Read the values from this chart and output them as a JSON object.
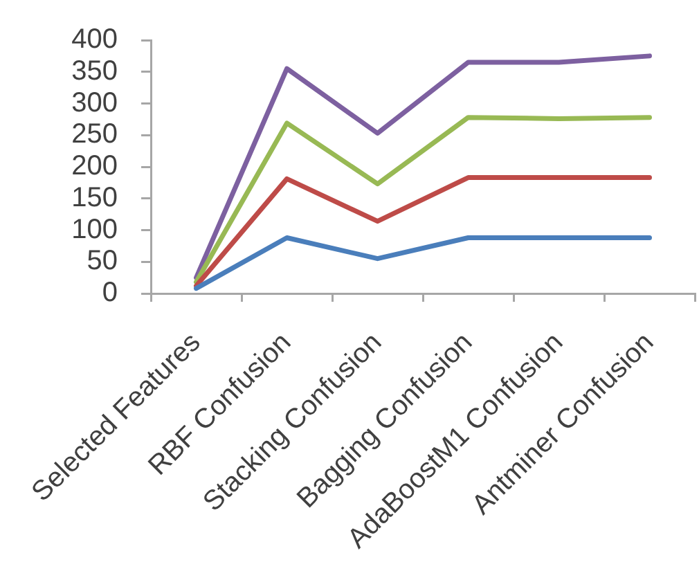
{
  "chart_data": {
    "type": "line",
    "categories": [
      "Selected Features",
      "RBF Confusion",
      "Stacking Confusion",
      "Bagging Confusion",
      "AdaBoostM1 Confusion",
      "Antminer Confusion"
    ],
    "series": [
      {
        "color": "#4a7ebb",
        "values": [
          8,
          88,
          55,
          88,
          88,
          88
        ]
      },
      {
        "color": "#be4b48",
        "values": [
          12,
          181,
          114,
          183,
          183,
          183
        ]
      },
      {
        "color": "#98b954",
        "values": [
          18,
          269,
          173,
          278,
          276,
          278
        ]
      },
      {
        "color": "#7d60a0",
        "values": [
          25,
          355,
          253,
          365,
          365,
          375
        ]
      }
    ],
    "ylim": [
      0,
      400
    ],
    "yticks": [
      0,
      50,
      100,
      150,
      200,
      250,
      300,
      350,
      400
    ],
    "grid": false,
    "legend": false
  }
}
